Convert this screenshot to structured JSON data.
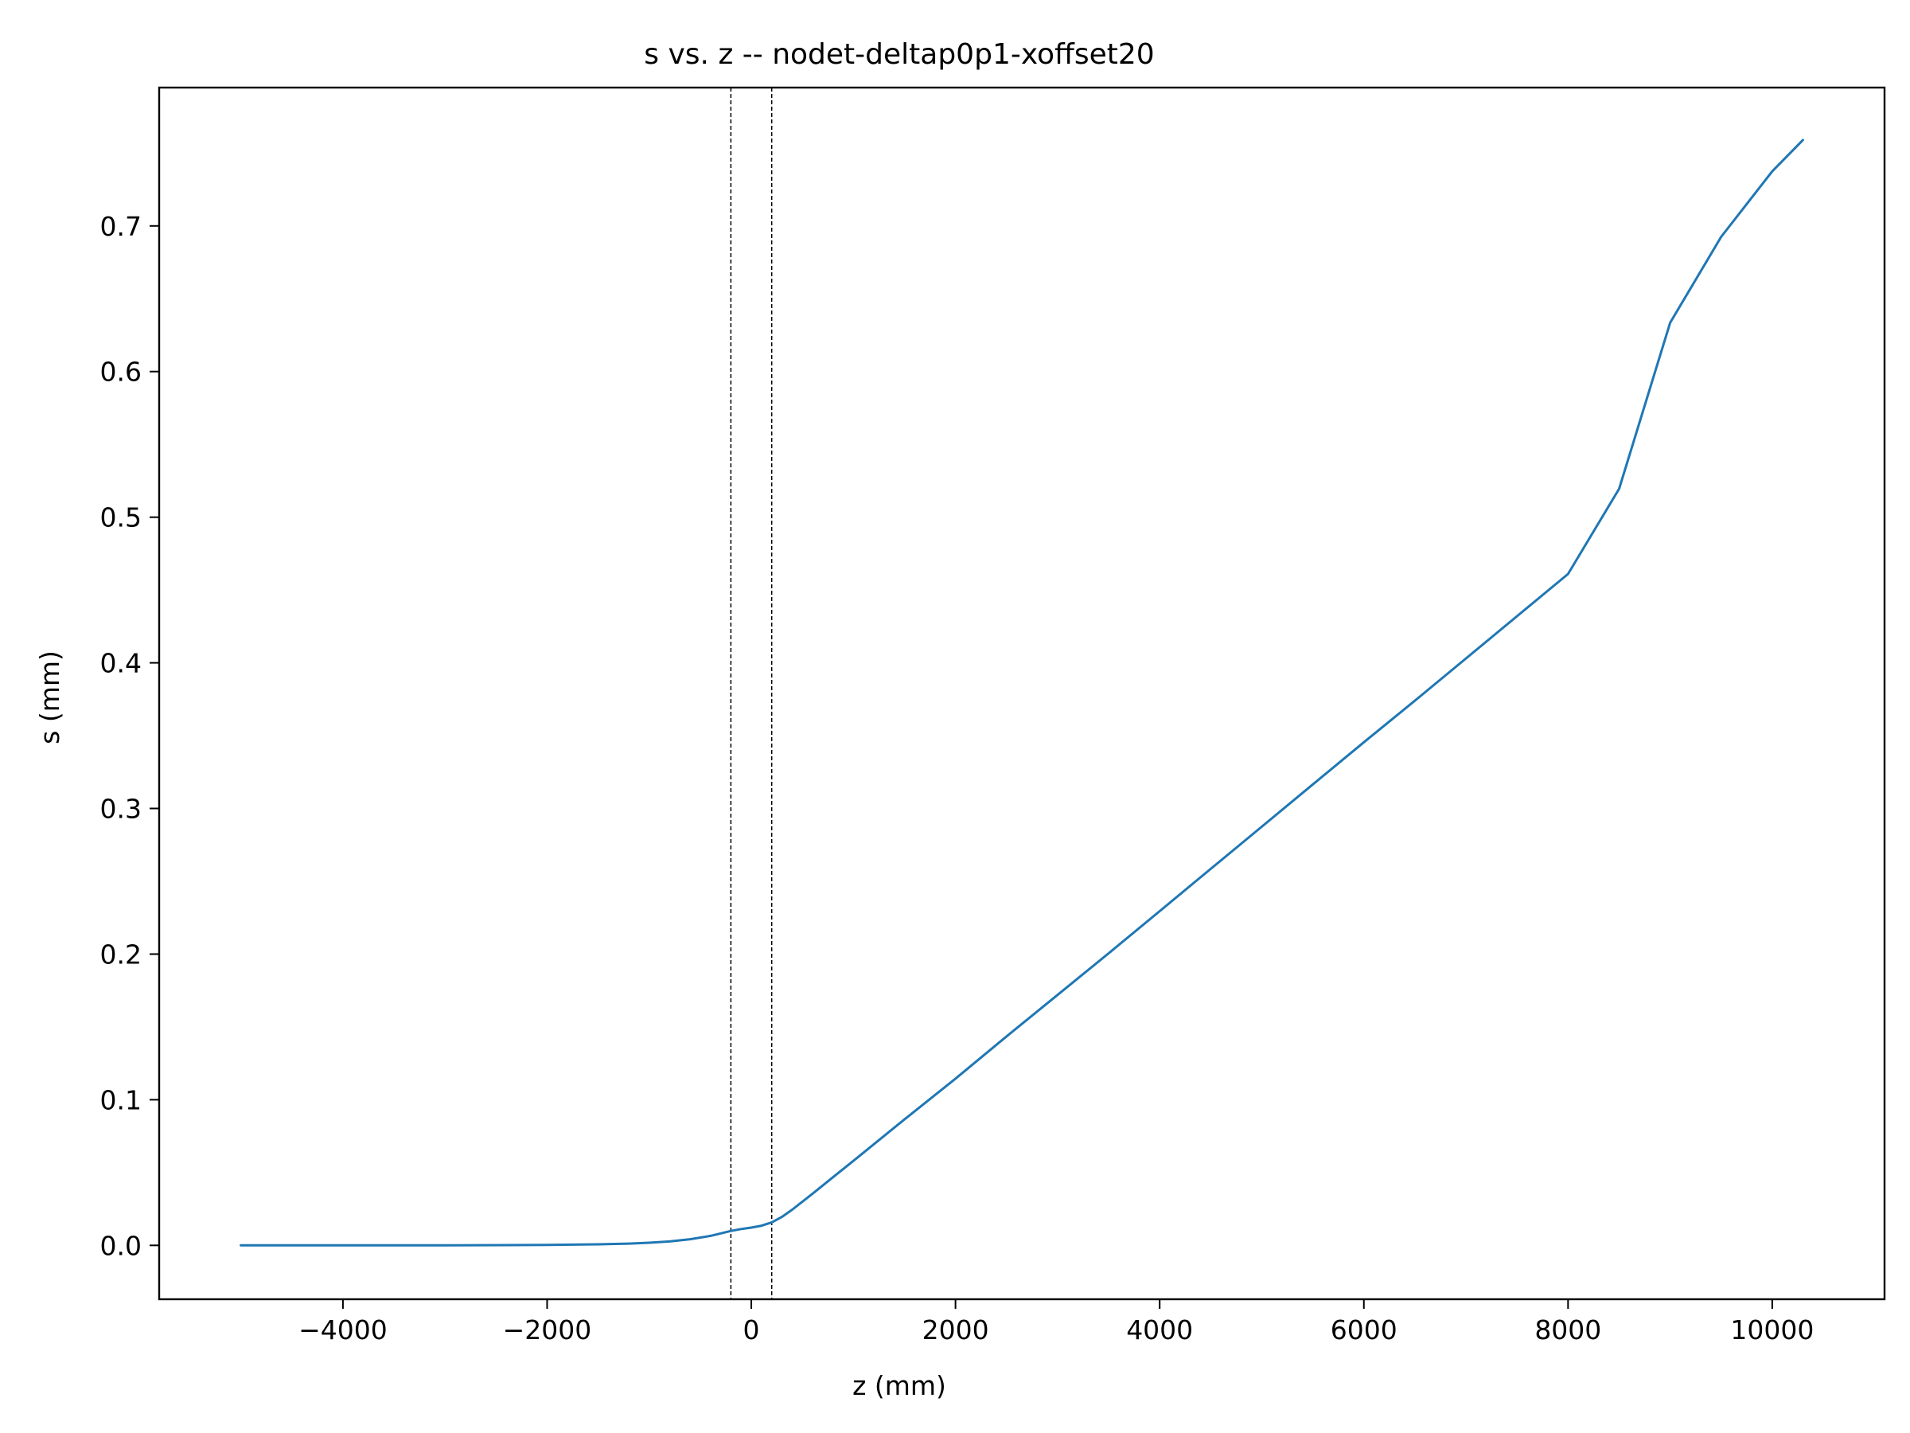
{
  "chart_data": {
    "type": "line",
    "title": "s vs. z -- nodet-deltap0p1-xoffset20",
    "xlabel": "z (mm)",
    "ylabel": "s (mm)",
    "xlim": [
      -5800,
      11100
    ],
    "ylim": [
      -0.037,
      0.795
    ],
    "grid": false,
    "x_ticks": [
      {
        "value": -4000,
        "label": "−4000"
      },
      {
        "value": -2000,
        "label": "−2000"
      },
      {
        "value": 0,
        "label": "0"
      },
      {
        "value": 2000,
        "label": "2000"
      },
      {
        "value": 4000,
        "label": "4000"
      },
      {
        "value": 6000,
        "label": "6000"
      },
      {
        "value": 8000,
        "label": "8000"
      },
      {
        "value": 10000,
        "label": "10000"
      }
    ],
    "y_ticks": [
      {
        "value": 0.0,
        "label": "0.0"
      },
      {
        "value": 0.1,
        "label": "0.1"
      },
      {
        "value": 0.2,
        "label": "0.2"
      },
      {
        "value": 0.3,
        "label": "0.3"
      },
      {
        "value": 0.4,
        "label": "0.4"
      },
      {
        "value": 0.5,
        "label": "0.5"
      },
      {
        "value": 0.6,
        "label": "0.6"
      },
      {
        "value": 0.7,
        "label": "0.7"
      }
    ],
    "vlines": [
      -200,
      200
    ],
    "series": [
      {
        "color": "#1f77b4",
        "x": [
          -5000,
          -4000,
          -3000,
          -2000,
          -1500,
          -1200,
          -1000,
          -800,
          -600,
          -400,
          -300,
          -200,
          -100,
          0,
          100,
          200,
          300,
          400,
          600,
          800,
          1000,
          1500,
          2000,
          2500,
          3000,
          3500,
          4000,
          4500,
          5000,
          5500,
          6000,
          6500,
          7000,
          7500,
          8000,
          8500,
          9000,
          9500,
          10000,
          10300
        ],
        "y": [
          0.0,
          0.0,
          0.0,
          0.0003,
          0.0007,
          0.0012,
          0.0018,
          0.0027,
          0.0042,
          0.0065,
          0.0082,
          0.0099,
          0.0112,
          0.0122,
          0.0135,
          0.0158,
          0.0195,
          0.0245,
          0.0355,
          0.0468,
          0.058,
          0.0865,
          0.1145,
          0.1435,
          0.172,
          0.2005,
          0.2295,
          0.2585,
          0.2875,
          0.3165,
          0.3455,
          0.374,
          0.403,
          0.432,
          0.461,
          0.5195,
          0.6335,
          0.6925,
          0.7375,
          0.759
        ]
      }
    ]
  }
}
